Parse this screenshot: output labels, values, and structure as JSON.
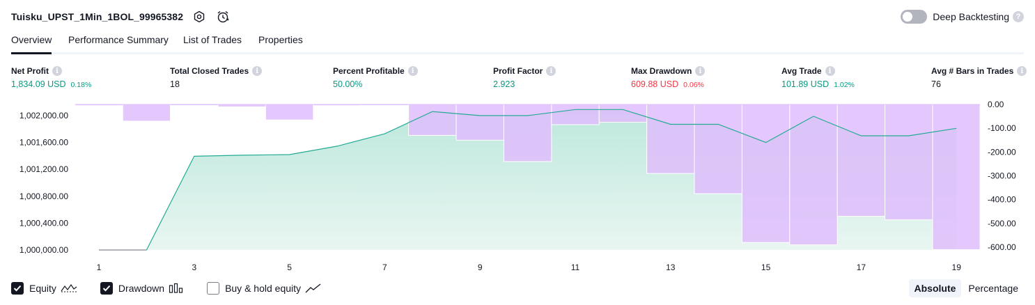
{
  "header": {
    "title": "Tuisku_UPST_1Min_1BOL_99965382",
    "deep_backtesting_label": "Deep Backtesting"
  },
  "tabs": [
    {
      "label": "Overview",
      "active": true
    },
    {
      "label": "Performance Summary",
      "active": false
    },
    {
      "label": "List of Trades",
      "active": false
    },
    {
      "label": "Properties",
      "active": false
    }
  ],
  "metrics": [
    {
      "label": "Net Profit",
      "value": "1,834.09 USD",
      "sub": "0.18%",
      "color": "green"
    },
    {
      "label": "Total Closed Trades",
      "value": "18",
      "sub": "",
      "color": "dark"
    },
    {
      "label": "Percent Profitable",
      "value": "50.00%",
      "sub": "",
      "color": "green"
    },
    {
      "label": "Profit Factor",
      "value": "2.923",
      "sub": "",
      "color": "green"
    },
    {
      "label": "Max Drawdown",
      "value": "609.88 USD",
      "sub": "0.06%",
      "color": "red"
    },
    {
      "label": "Avg Trade",
      "value": "101.89 USD",
      "sub": "1.02%",
      "color": "green"
    },
    {
      "label": "Avg # Bars in Trades",
      "value": "76",
      "sub": "",
      "color": "dark"
    }
  ],
  "legend": {
    "equity_label": "Equity",
    "drawdown_label": "Drawdown",
    "buyhold_label": "Buy & hold equity",
    "equity_checked": true,
    "drawdown_checked": true,
    "buyhold_checked": false
  },
  "mode": {
    "absolute_label": "Absolute",
    "percentage_label": "Percentage",
    "active": "absolute"
  },
  "colors": {
    "equity_line": "#22ab94",
    "equity_fill_top": "#bde8dc",
    "equity_fill_bottom": "#e9f6f2",
    "drawdown_fill": "#dfbdfb",
    "drawdown_overlap": "#b0b8e3",
    "buyhold_line": "#9598a1"
  },
  "chart_data": {
    "type": "line",
    "x_tick_labels": [
      "1",
      "3",
      "5",
      "7",
      "9",
      "11",
      "13",
      "15",
      "17",
      "19"
    ],
    "x_range": [
      1,
      19
    ],
    "equity_axis": {
      "side": "left",
      "ylim": [
        1000000,
        1002000
      ],
      "tick_values": [
        1000000,
        1000400,
        1000800,
        1001200,
        1001600,
        1002000
      ],
      "tick_labels": [
        "1,000,000.00",
        "1,000,400.00",
        "1,000,800.00",
        "1,001,200.00",
        "1,001,600.00",
        "1,002,000.00"
      ]
    },
    "drawdown_axis": {
      "side": "right",
      "ylim": [
        -600,
        0
      ],
      "tick_values": [
        0,
        -100,
        -200,
        -300,
        -400,
        -500,
        -600
      ],
      "tick_labels": [
        "0.00",
        "-100.00",
        "-200.00",
        "-300.00",
        "-400.00",
        "-500.00",
        "-600.00"
      ]
    },
    "equity": {
      "x": [
        1,
        2,
        3,
        4,
        5,
        6,
        7,
        8,
        9,
        10,
        11,
        12,
        13,
        14,
        15,
        16,
        17,
        18,
        19
      ],
      "values": [
        1000000,
        1000000,
        1001395,
        1001410,
        1001420,
        1001545,
        1001730,
        1002060,
        1002000,
        1002000,
        1002090,
        1002090,
        1001870,
        1001870,
        1001600,
        1001990,
        1001700,
        1001700,
        1001810
      ]
    },
    "drawdown": {
      "x": [
        1,
        2,
        3,
        4,
        5,
        6,
        7,
        8,
        9,
        10,
        11,
        12,
        13,
        14,
        15,
        16,
        17,
        18,
        19
      ],
      "values": [
        -5,
        -70,
        0,
        -10,
        -65,
        -5,
        0,
        -130,
        -150,
        -240,
        -85,
        -75,
        -290,
        -375,
        -580,
        -590,
        -470,
        -485,
        -610
      ]
    },
    "legend_entries": [
      "Equity",
      "Drawdown",
      "Buy & hold equity"
    ],
    "legend_position": "bottom-left",
    "grid": false
  }
}
